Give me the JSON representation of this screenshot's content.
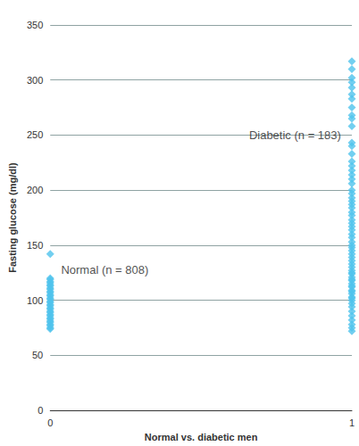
{
  "chart_data": {
    "type": "scatter",
    "x_label": "Normal vs. diabetic men",
    "y_label": "Fasting glucose (mg/dl)",
    "xlim": [
      0,
      1
    ],
    "xticks": [
      0,
      1
    ],
    "ylim": [
      0,
      350
    ],
    "yticks": [
      0,
      50,
      100,
      150,
      200,
      250,
      300,
      350
    ],
    "grid": true,
    "marker": "diamond",
    "series": [
      {
        "color": "#4fc3ec",
        "x": [
          0,
          0,
          0,
          0,
          0,
          0,
          0,
          0,
          0,
          0,
          0,
          0,
          0,
          0,
          0,
          0,
          0,
          0,
          0,
          0,
          0,
          0,
          0,
          0,
          0,
          0,
          0,
          0,
          0,
          0,
          0,
          0,
          0
        ],
        "values": [
          74,
          75,
          77,
          78,
          80,
          81,
          83,
          84,
          86,
          87,
          89,
          90,
          92,
          93,
          95,
          96,
          98,
          99,
          101,
          102,
          104,
          105,
          107,
          108,
          110,
          111,
          113,
          114,
          116,
          117,
          119,
          120,
          142
        ]
      },
      {
        "color": "#4fc3ec",
        "x": [
          1,
          1,
          1,
          1,
          1,
          1,
          1,
          1,
          1,
          1,
          1,
          1,
          1,
          1,
          1,
          1,
          1,
          1,
          1,
          1,
          1,
          1,
          1,
          1,
          1,
          1,
          1,
          1,
          1,
          1,
          1,
          1,
          1,
          1,
          1,
          1,
          1,
          1,
          1,
          1,
          1,
          1,
          1,
          1,
          1,
          1,
          1,
          1,
          1,
          1,
          1,
          1,
          1,
          1,
          1,
          1,
          1,
          1,
          1,
          1,
          1,
          1,
          1,
          1,
          1,
          1
        ],
        "values": [
          317,
          310,
          302,
          298,
          293,
          287,
          283,
          275,
          268,
          265,
          258,
          243,
          240,
          233,
          226,
          222,
          218,
          214,
          210,
          206,
          200,
          197,
          193,
          190,
          187,
          184,
          180,
          177,
          173,
          170,
          167,
          164,
          160,
          157,
          153,
          150,
          148,
          145,
          142,
          139,
          136,
          133,
          130,
          127,
          124,
          121,
          118,
          115,
          112,
          109,
          106,
          103,
          100,
          97,
          94,
          90,
          86,
          82,
          78,
          75,
          72,
          125,
          119,
          113,
          108,
          102
        ]
      }
    ],
    "annotations": [
      {
        "text": "Normal (n = 808)",
        "x": 0.03,
        "y": 128
      },
      {
        "text": "Diabetic (n = 183)",
        "x": 0.97,
        "y": 250
      }
    ]
  }
}
